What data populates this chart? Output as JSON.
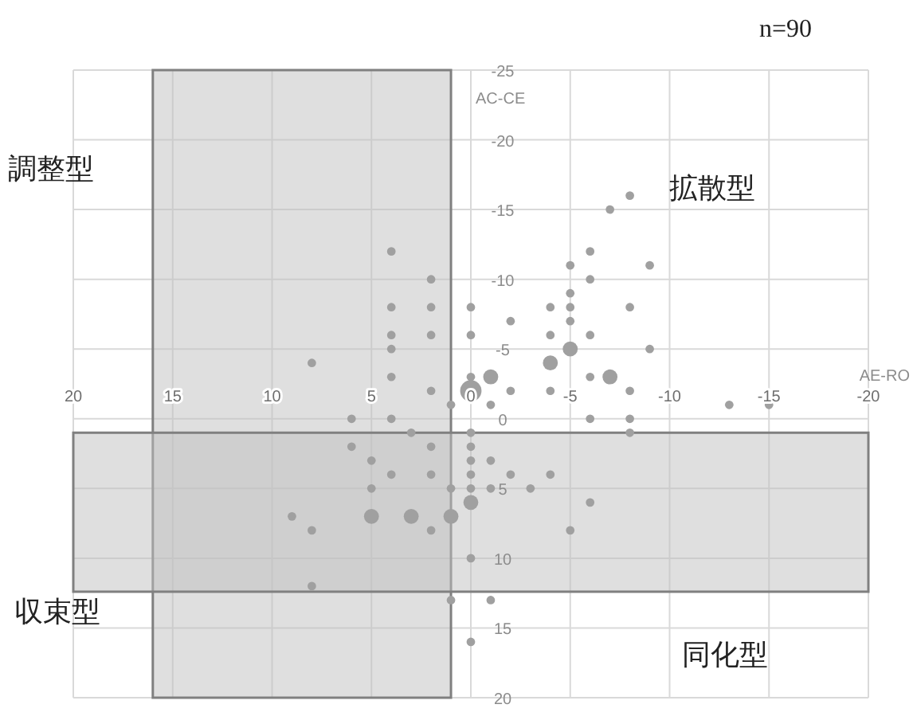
{
  "chart_data": {
    "type": "bubble",
    "xlabel": "AE-RO",
    "ylabel": "AC-CE",
    "annotations": [
      "n=90",
      "調整型",
      "拡散型",
      "収束型",
      "同化型"
    ],
    "xlim": [
      20,
      -20
    ],
    "ylim": [
      20,
      -25
    ],
    "xticks": [
      20,
      15,
      10,
      5,
      0,
      -5,
      -10,
      -15,
      -20
    ],
    "yticks": [
      20,
      15,
      10,
      5,
      0,
      -5,
      -10,
      -15,
      -20,
      -25
    ],
    "grid": true,
    "marker": "circle",
    "bands": [
      {
        "axis": "x",
        "from": 16,
        "to": 1,
        "color": "#bfbfbf"
      },
      {
        "axis": "y",
        "from": 1,
        "to": 12.4,
        "color": "#bfbfbf"
      }
    ],
    "series": [
      {
        "color": "#a0a0a0",
        "x": [
          4,
          2,
          4,
          2,
          0,
          4,
          2,
          0,
          -2,
          4,
          8,
          4,
          2,
          0,
          0,
          -1,
          -2,
          -1,
          1,
          6,
          4,
          3,
          0,
          6,
          2,
          0,
          -8,
          -7,
          -6,
          -5,
          -9,
          -6,
          -5,
          -4,
          -5,
          -8,
          -5,
          -4,
          -6,
          -5,
          -9,
          -4,
          -6,
          -7,
          -4,
          -8,
          -6,
          -8,
          -13,
          -15,
          -8,
          0,
          -1,
          0,
          -2,
          -4,
          1,
          0,
          -1,
          -3,
          0,
          -6,
          1,
          -5,
          0,
          1,
          -1,
          0,
          5,
          4,
          2,
          5,
          9,
          5,
          3,
          8,
          2,
          8
        ],
        "values": [
          -12,
          -10,
          -8,
          -8,
          -8,
          -6,
          -6,
          -6,
          -7,
          -5,
          -4,
          -3,
          -2,
          -3,
          -2,
          -3,
          -2,
          -1,
          -1,
          0,
          0,
          1,
          1,
          2,
          2,
          2,
          -16,
          -15,
          -12,
          -11,
          -11,
          -10,
          -9,
          -8,
          -8,
          -8,
          -7,
          -6,
          -6,
          -5,
          -5,
          -4,
          -3,
          -3,
          -2,
          -2,
          0,
          0,
          -1,
          -1,
          1,
          3,
          3,
          4,
          4,
          4,
          5,
          5,
          5,
          5,
          6,
          6,
          7,
          8,
          10,
          13,
          13,
          16,
          3,
          4,
          4,
          5,
          7,
          7,
          7,
          8,
          8,
          12
        ],
        "sizes": [
          0.16,
          0.16,
          0.16,
          0.16,
          0.16,
          0.16,
          0.16,
          0.16,
          0.16,
          0.16,
          0.16,
          0.16,
          0.16,
          0.16,
          1,
          0.49,
          0.16,
          0.16,
          0.16,
          0.16,
          0.16,
          0.16,
          0.16,
          0.16,
          0.16,
          0.16,
          0.16,
          0.16,
          0.16,
          0.16,
          0.16,
          0.16,
          0.16,
          0.16,
          0.16,
          0.16,
          0.16,
          0.16,
          0.16,
          0.49,
          0.16,
          0.49,
          0.16,
          0.49,
          0.16,
          0.16,
          0.16,
          0.16,
          0.16,
          0.16,
          0.16,
          0.16,
          0.16,
          0.16,
          0.16,
          0.16,
          0.16,
          0.16,
          0.16,
          0.16,
          0.49,
          0.16,
          0.49,
          0.16,
          0.16,
          0.16,
          0.16,
          0.16,
          0.16,
          0.16,
          0.16,
          0.16,
          0.16,
          0.49,
          0.49,
          0.16,
          0.16,
          0.16
        ]
      }
    ]
  }
}
